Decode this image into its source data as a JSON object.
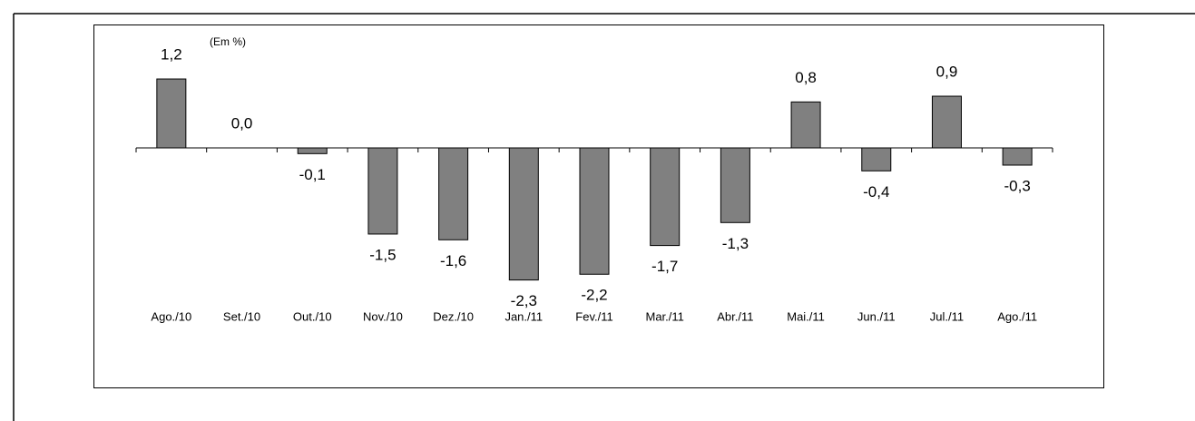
{
  "chart_data": {
    "type": "bar",
    "annotation": "(Em %)",
    "categories": [
      "Ago./10",
      "Set./10",
      "Out./10",
      "Nov./10",
      "Dez./10",
      "Jan./11",
      "Fev./11",
      "Mar./11",
      "Abr./11",
      "Mai./11",
      "Jun./11",
      "Jul./11",
      "Ago./11"
    ],
    "values": [
      1.2,
      0.0,
      -0.1,
      -1.5,
      -1.6,
      -2.3,
      -2.2,
      -1.7,
      -1.3,
      0.8,
      -0.4,
      0.9,
      -0.3
    ],
    "value_labels": [
      "1,2",
      "0,0",
      "-0,1",
      "-1,5",
      "-1,6",
      "-2,3",
      "-2,2",
      "-1,7",
      "-1,3",
      "0,8",
      "-0,4",
      "0,9",
      "-0,3"
    ],
    "color": "#808080"
  }
}
